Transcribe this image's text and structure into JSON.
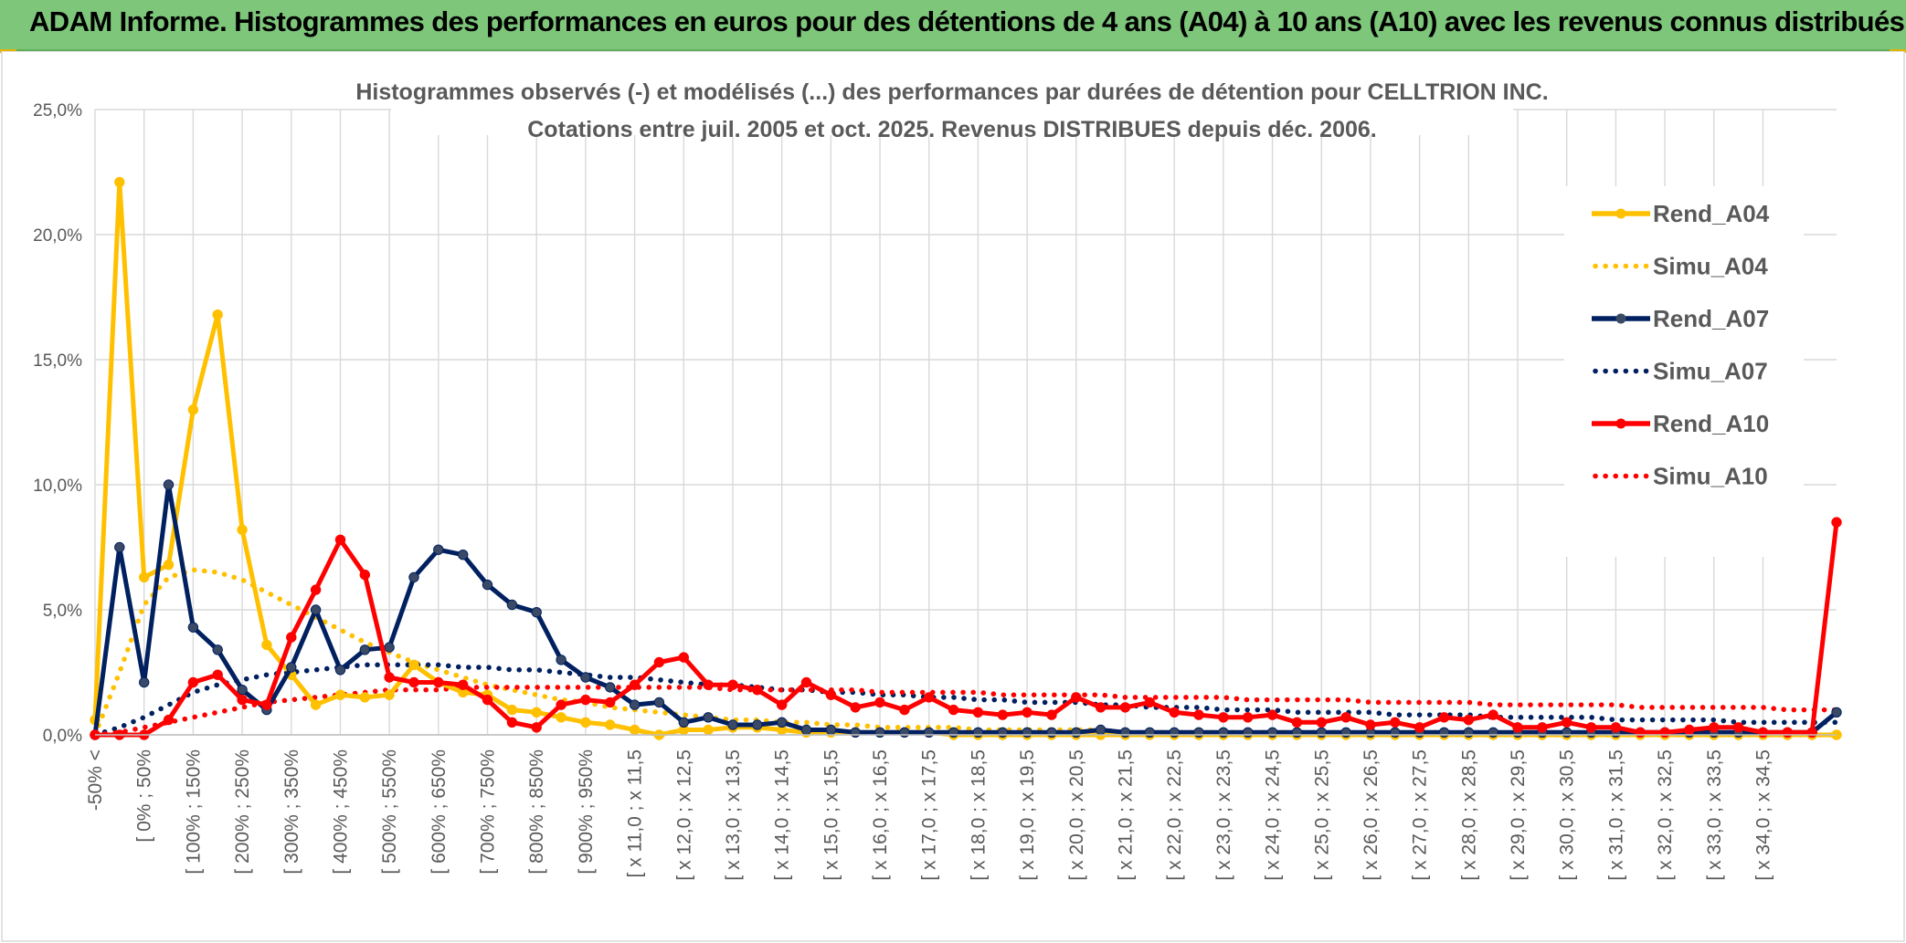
{
  "banner": {
    "title": "ADAM Informe. Histogrammes des performances en euros pour des détentions de 4 ans (A04) à 10 ans (A10) avec les revenus connus distribués"
  },
  "colors": {
    "a04": "#ffc000",
    "a07": "#002060",
    "a10": "#ff0000",
    "grid": "#d9d9d9",
    "banner": "#7dc67a"
  },
  "chart_data": {
    "type": "line",
    "title": "Histogrammes observés (-) et modélisés (...) des performances par durées de détention pour CELLTRION INC.",
    "subtitle": "Cotations entre juil. 2005 et oct. 2025. Revenus DISTRIBUES depuis déc. 2006.",
    "ylim": [
      0,
      0.25
    ],
    "yticks": [
      "0,0%",
      "5,0%",
      "10,0%",
      "15,0%",
      "20,0%",
      "25,0%"
    ],
    "grid": true,
    "legend_position": "right",
    "xtick_labels": [
      "-50% <",
      "[ 0% ; 50%",
      "[ 100% ; 150%",
      "[ 200% ; 250%",
      "[ 300% ; 350%",
      "[ 400% ; 450%",
      "[ 500% ; 550%",
      "[ 600% ; 650%",
      "[ 700% ; 750%",
      "[ 800% ; 850%",
      "[ 900% ; 950%",
      "[ x 11,0 ; x 11,5",
      "[ x 12,0 ; x 12,5",
      "[ x 13,0 ; x 13,5",
      "[ x 14,0 ; x 14,5",
      "[ x 15,0 ; x 15,5",
      "[ x 16,0 ; x 16,5",
      "[ x 17,0 ; x 17,5",
      "[ x 18,0 ; x 18,5",
      "[ x 19,0 ; x 19,5",
      "[ x 20,0 ; x 20,5",
      "[ x 21,0 ; x 21,5",
      "[ x 22,0 ; x 22,5",
      "[ x 23,0 ; x 23,5",
      "[ x 24,0 ; x 24,5",
      "[ x 25,0 ; x 25,5",
      "[ x 26,0 ; x 26,5",
      "[ x 27,0 ; x 27,5",
      "[ x 28,0 ; x 28,5",
      "[ x 29,0 ; x 29,5",
      "[ x 30,0 ; x 30,5",
      "[ x 31,0 ; x 31,5",
      "[ x 32,0 ; x 32,5",
      "[ x 33,0 ; x 33,5",
      "[ x 34,0 ; x 34,5"
    ],
    "x_categories_count": 72,
    "series": [
      {
        "name": "Rend_A04",
        "style": "solid",
        "color": "#ffc000",
        "values": [
          0.006,
          0.221,
          0.063,
          0.068,
          0.13,
          0.168,
          0.082,
          0.036,
          0.024,
          0.012,
          0.016,
          0.015,
          0.016,
          0.028,
          0.021,
          0.017,
          0.016,
          0.01,
          0.009,
          0.007,
          0.005,
          0.004,
          0.002,
          0.0,
          0.002,
          0.002,
          0.003,
          0.003,
          0.002,
          0.001,
          0.001,
          0.001,
          0.001,
          0.001,
          0.001,
          0.0,
          0.0,
          0.0,
          0.0,
          0.0,
          0.0,
          0.0,
          0.0,
          0.0,
          0.0,
          0.0,
          0.0,
          0.0,
          0.0,
          0.0,
          0.0,
          0.0,
          0.0,
          0.0,
          0.0,
          0.0,
          0.0,
          0.0,
          0.0,
          0.0,
          0.0,
          0.0,
          0.0,
          0.0,
          0.0,
          0.0,
          0.0,
          0.0,
          0.0,
          0.0,
          0.0,
          0.0
        ]
      },
      {
        "name": "Simu_A04",
        "style": "dotted",
        "color": "#ffc000",
        "values": [
          0.0,
          0.025,
          0.052,
          0.063,
          0.066,
          0.065,
          0.062,
          0.057,
          0.052,
          0.047,
          0.042,
          0.037,
          0.033,
          0.029,
          0.026,
          0.023,
          0.02,
          0.018,
          0.016,
          0.014,
          0.013,
          0.011,
          0.01,
          0.009,
          0.008,
          0.007,
          0.006,
          0.006,
          0.005,
          0.005,
          0.004,
          0.004,
          0.003,
          0.003,
          0.003,
          0.003,
          0.002,
          0.002,
          0.002,
          0.002,
          0.002,
          0.002,
          0.001,
          0.001,
          0.001,
          0.001,
          0.001,
          0.001,
          0.001,
          0.001,
          0.001,
          0.001,
          0.001,
          0.001,
          0.001,
          0.001,
          0.0,
          0.0,
          0.0,
          0.0,
          0.0,
          0.0,
          0.0,
          0.0,
          0.0,
          0.0,
          0.0,
          0.0,
          0.0,
          0.0,
          0.0,
          0.0
        ]
      },
      {
        "name": "Rend_A07",
        "style": "solid",
        "color": "#002060",
        "values": [
          0.0,
          0.075,
          0.021,
          0.1,
          0.043,
          0.034,
          0.018,
          0.01,
          0.027,
          0.05,
          0.026,
          0.034,
          0.035,
          0.063,
          0.074,
          0.072,
          0.06,
          0.052,
          0.049,
          0.03,
          0.023,
          0.019,
          0.012,
          0.013,
          0.005,
          0.007,
          0.004,
          0.004,
          0.005,
          0.002,
          0.002,
          0.001,
          0.001,
          0.001,
          0.001,
          0.001,
          0.001,
          0.001,
          0.001,
          0.001,
          0.001,
          0.002,
          0.001,
          0.001,
          0.001,
          0.001,
          0.001,
          0.001,
          0.001,
          0.001,
          0.001,
          0.001,
          0.001,
          0.001,
          0.001,
          0.001,
          0.001,
          0.001,
          0.001,
          0.001,
          0.001,
          0.001,
          0.001,
          0.001,
          0.001,
          0.001,
          0.001,
          0.001,
          0.001,
          0.001,
          0.001,
          0.009
        ]
      },
      {
        "name": "Simu_A07",
        "style": "dotted",
        "color": "#002060",
        "values": [
          0.0,
          0.003,
          0.007,
          0.012,
          0.017,
          0.02,
          0.022,
          0.024,
          0.025,
          0.026,
          0.027,
          0.028,
          0.028,
          0.028,
          0.028,
          0.027,
          0.027,
          0.026,
          0.026,
          0.025,
          0.024,
          0.023,
          0.023,
          0.022,
          0.021,
          0.02,
          0.02,
          0.019,
          0.018,
          0.018,
          0.017,
          0.017,
          0.016,
          0.016,
          0.015,
          0.015,
          0.014,
          0.014,
          0.013,
          0.013,
          0.013,
          0.012,
          0.012,
          0.011,
          0.011,
          0.011,
          0.01,
          0.01,
          0.01,
          0.009,
          0.009,
          0.009,
          0.009,
          0.008,
          0.008,
          0.008,
          0.008,
          0.007,
          0.007,
          0.007,
          0.007,
          0.007,
          0.006,
          0.006,
          0.006,
          0.006,
          0.006,
          0.005,
          0.005,
          0.005,
          0.005,
          0.005
        ]
      },
      {
        "name": "Rend_A10",
        "style": "solid",
        "color": "#ff0000",
        "values": [
          0.0,
          0.0,
          0.0,
          0.006,
          0.021,
          0.024,
          0.014,
          0.012,
          0.039,
          0.058,
          0.078,
          0.064,
          0.023,
          0.021,
          0.021,
          0.02,
          0.014,
          0.005,
          0.003,
          0.012,
          0.014,
          0.013,
          0.02,
          0.029,
          0.031,
          0.02,
          0.02,
          0.018,
          0.012,
          0.021,
          0.016,
          0.011,
          0.013,
          0.01,
          0.015,
          0.01,
          0.009,
          0.008,
          0.009,
          0.008,
          0.015,
          0.011,
          0.011,
          0.013,
          0.009,
          0.008,
          0.007,
          0.007,
          0.008,
          0.005,
          0.005,
          0.007,
          0.004,
          0.005,
          0.003,
          0.007,
          0.006,
          0.008,
          0.003,
          0.003,
          0.005,
          0.003,
          0.003,
          0.001,
          0.001,
          0.002,
          0.003,
          0.003,
          0.001,
          0.001,
          0.001,
          0.085
        ]
      },
      {
        "name": "Simu_A10",
        "style": "dotted",
        "color": "#ff0000",
        "values": [
          0.0,
          0.001,
          0.003,
          0.005,
          0.007,
          0.009,
          0.011,
          0.013,
          0.014,
          0.015,
          0.016,
          0.017,
          0.018,
          0.018,
          0.018,
          0.019,
          0.019,
          0.019,
          0.019,
          0.019,
          0.019,
          0.019,
          0.019,
          0.019,
          0.019,
          0.019,
          0.018,
          0.018,
          0.018,
          0.018,
          0.018,
          0.018,
          0.017,
          0.017,
          0.017,
          0.017,
          0.017,
          0.016,
          0.016,
          0.016,
          0.016,
          0.016,
          0.015,
          0.015,
          0.015,
          0.015,
          0.015,
          0.014,
          0.014,
          0.014,
          0.014,
          0.014,
          0.013,
          0.013,
          0.013,
          0.013,
          0.013,
          0.012,
          0.012,
          0.012,
          0.012,
          0.012,
          0.012,
          0.011,
          0.011,
          0.011,
          0.011,
          0.011,
          0.011,
          0.01,
          0.01,
          0.01
        ]
      }
    ]
  }
}
